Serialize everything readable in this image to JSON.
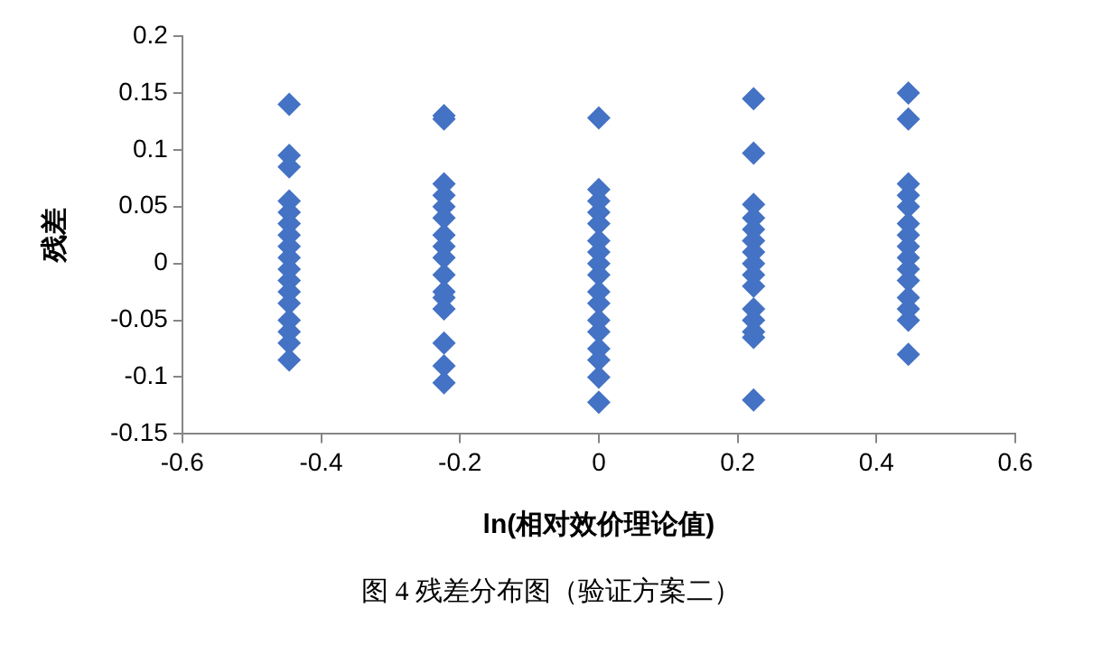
{
  "chart_data": {
    "type": "scatter",
    "xlabel": "ln(相对效价理论值)",
    "ylabel": "残差",
    "annotations": [
      "图 4 残差分布图（验证方案二）"
    ],
    "x": [
      -0.446,
      -0.446,
      -0.446,
      -0.446,
      -0.446,
      -0.446,
      -0.446,
      -0.446,
      -0.446,
      -0.446,
      -0.446,
      -0.446,
      -0.446,
      -0.446,
      -0.446,
      -0.446,
      -0.446,
      -0.223,
      -0.223,
      -0.223,
      -0.223,
      -0.223,
      -0.223,
      -0.223,
      -0.223,
      -0.223,
      -0.223,
      -0.223,
      -0.223,
      -0.223,
      -0.223,
      -0.223,
      -0.223,
      0,
      0,
      0,
      0,
      0,
      0,
      0,
      0,
      0,
      0,
      0,
      0,
      0,
      0,
      0,
      0,
      0,
      0.223,
      0.223,
      0.223,
      0.223,
      0.223,
      0.223,
      0.223,
      0.223,
      0.223,
      0.223,
      0.223,
      0.223,
      0.223,
      0.223,
      0.223,
      0.446,
      0.446,
      0.446,
      0.446,
      0.446,
      0.446,
      0.446,
      0.446,
      0.446,
      0.446,
      0.446,
      0.446,
      0.446,
      0.446,
      0.446
    ],
    "series": [
      {
        "color": "#4472c4",
        "values": [
          0.14,
          0.095,
          0.085,
          0.055,
          0.045,
          0.035,
          0.025,
          0.015,
          0.005,
          -0.005,
          -0.015,
          -0.025,
          -0.035,
          -0.05,
          -0.06,
          -0.07,
          -0.085,
          0.13,
          0.127,
          0.07,
          0.06,
          0.05,
          0.04,
          0.025,
          0.015,
          0.005,
          -0.01,
          -0.025,
          -0.03,
          -0.04,
          -0.07,
          -0.09,
          -0.105,
          0.128,
          0.065,
          0.055,
          0.045,
          0.035,
          0.02,
          0.01,
          0,
          -0.01,
          -0.025,
          -0.035,
          -0.05,
          -0.06,
          -0.075,
          -0.085,
          -0.1,
          -0.122,
          0.145,
          0.097,
          0.052,
          0.04,
          0.03,
          0.02,
          0.01,
          0,
          -0.01,
          -0.02,
          -0.04,
          -0.05,
          -0.06,
          -0.065,
          -0.12,
          0.15,
          0.127,
          0.07,
          0.06,
          0.05,
          0.035,
          0.025,
          0.015,
          0.005,
          -0.005,
          -0.015,
          -0.03,
          -0.04,
          -0.05,
          -0.08
        ]
      }
    ],
    "xlim": [
      -0.6,
      0.6
    ],
    "xticks": [
      -0.6,
      -0.4,
      -0.2,
      0,
      0.2,
      0.4,
      0.6
    ],
    "ylim": [
      -0.15,
      0.2
    ],
    "yticks": [
      -0.15,
      -0.1,
      -0.05,
      0,
      0.05,
      0.1,
      0.15,
      0.2
    ],
    "grid": false,
    "legend": false,
    "marker": "diamond"
  }
}
